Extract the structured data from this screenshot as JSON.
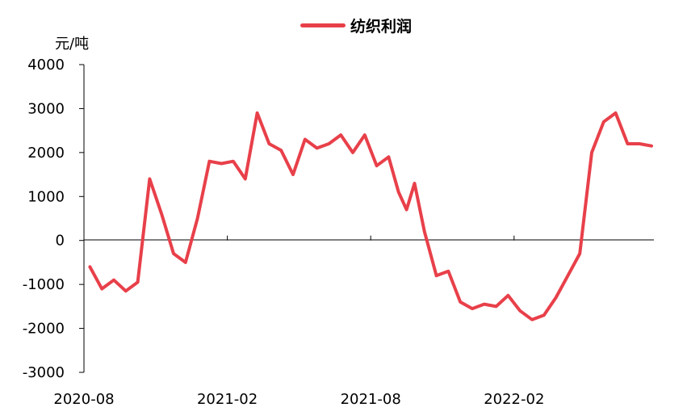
{
  "chart_data": {
    "type": "line",
    "title": "",
    "ylabel": "元/吨",
    "xlabel": "",
    "ylim": [
      -3000,
      4000
    ],
    "yticks": [
      4000,
      3000,
      2000,
      1000,
      0,
      -1000,
      -2000,
      -3000
    ],
    "xticks": [
      "2020-08",
      "2021-02",
      "2021-08",
      "2022-02"
    ],
    "grid": false,
    "legend_position": "top-center",
    "series": [
      {
        "name": "纺织利润",
        "color": "#e8404a",
        "x": [
          "2020-08",
          "2020-08",
          "2020-09",
          "2020-09",
          "2020-10",
          "2020-10",
          "2020-11",
          "2020-11",
          "2020-12",
          "2020-12",
          "2021-01",
          "2021-01",
          "2021-02",
          "2021-02",
          "2021-03",
          "2021-03",
          "2021-04",
          "2021-04",
          "2021-05",
          "2021-05",
          "2021-06",
          "2021-06",
          "2021-07",
          "2021-07",
          "2021-08",
          "2021-08",
          "2021-09",
          "2021-09",
          "2021-09",
          "2021-10",
          "2021-10",
          "2021-11",
          "2021-11",
          "2021-12",
          "2021-12",
          "2022-01",
          "2022-01",
          "2022-02",
          "2022-02",
          "2022-03",
          "2022-03",
          "2022-04",
          "2022-04",
          "2022-05",
          "2022-05",
          "2022-06",
          "2022-06",
          "2022-07",
          "2022-07"
        ],
        "values": [
          -600,
          -1100,
          -900,
          -1150,
          -950,
          1400,
          600,
          -300,
          -500,
          500,
          1800,
          1750,
          1800,
          1400,
          2900,
          2200,
          2050,
          1500,
          2300,
          2100,
          2200,
          2400,
          2000,
          2400,
          1700,
          1900,
          1100,
          700,
          1300,
          200,
          -800,
          -700,
          -1400,
          -1550,
          -1450,
          -1500,
          -1250,
          -1600,
          -1800,
          -1700,
          -1300,
          -800,
          -300,
          2000,
          2700,
          2900,
          2200,
          2200,
          2150
        ]
      }
    ]
  }
}
